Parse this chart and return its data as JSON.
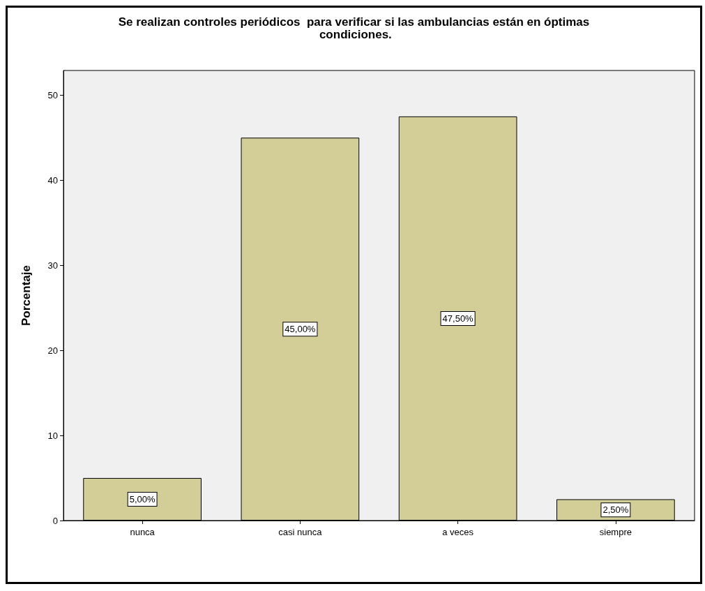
{
  "chart_data": {
    "type": "bar",
    "title": "Se realizan controles periódicos  para verificar si las ambulancias están en óptimas condiciones.",
    "ylabel": "Porcentaje",
    "categories": [
      "nunca",
      "casi nunca",
      "a veces",
      "siempre"
    ],
    "values": [
      5,
      45,
      47.5,
      2.5
    ],
    "value_labels": [
      "5,00%",
      "45,00%",
      "47,50%",
      "2,50%"
    ],
    "color": "#d3ce97",
    "ylim": [
      0,
      52.9
    ],
    "yticks": [
      0,
      10,
      20,
      30,
      40,
      50
    ],
    "grid": false
  }
}
